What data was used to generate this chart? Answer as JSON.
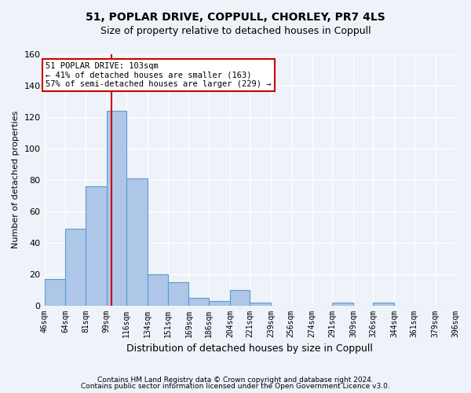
{
  "title_line1": "51, POPLAR DRIVE, COPPULL, CHORLEY, PR7 4LS",
  "title_line2": "Size of property relative to detached houses in Coppull",
  "xlabel": "Distribution of detached houses by size in Coppull",
  "ylabel": "Number of detached properties",
  "bar_heights": [
    17,
    49,
    76,
    124,
    81,
    20,
    15,
    5,
    3,
    10,
    2,
    0,
    0,
    0,
    2,
    0,
    2,
    0,
    0,
    0
  ],
  "bin_edges": [
    46,
    64,
    81,
    99,
    116,
    134,
    151,
    169,
    186,
    204,
    221,
    239,
    256,
    274,
    291,
    309,
    326,
    344,
    361,
    379,
    396
  ],
  "xtick_labels": [
    "46sqm",
    "64sqm",
    "81sqm",
    "99sqm",
    "116sqm",
    "134sqm",
    "151sqm",
    "169sqm",
    "186sqm",
    "204sqm",
    "221sqm",
    "239sqm",
    "256sqm",
    "274sqm",
    "291sqm",
    "309sqm",
    "326sqm",
    "344sqm",
    "361sqm",
    "379sqm",
    "396sqm"
  ],
  "bar_color": "#aec6e8",
  "bar_edge_color": "#5b9bd5",
  "bg_color": "#eef2f9",
  "grid_color": "#ffffff",
  "property_size": 103,
  "annotation_text": "51 POPLAR DRIVE: 103sqm\n← 41% of detached houses are smaller (163)\n57% of semi-detached houses are larger (229) →",
  "annotation_box_color": "#ffffff",
  "annotation_border_color": "#cc0000",
  "vline_color": "#cc0000",
  "footer_line1": "Contains HM Land Registry data © Crown copyright and database right 2024.",
  "footer_line2": "Contains public sector information licensed under the Open Government Licence v3.0.",
  "ylim": [
    0,
    160
  ],
  "yticks": [
    0,
    20,
    40,
    60,
    80,
    100,
    120,
    140,
    160
  ]
}
